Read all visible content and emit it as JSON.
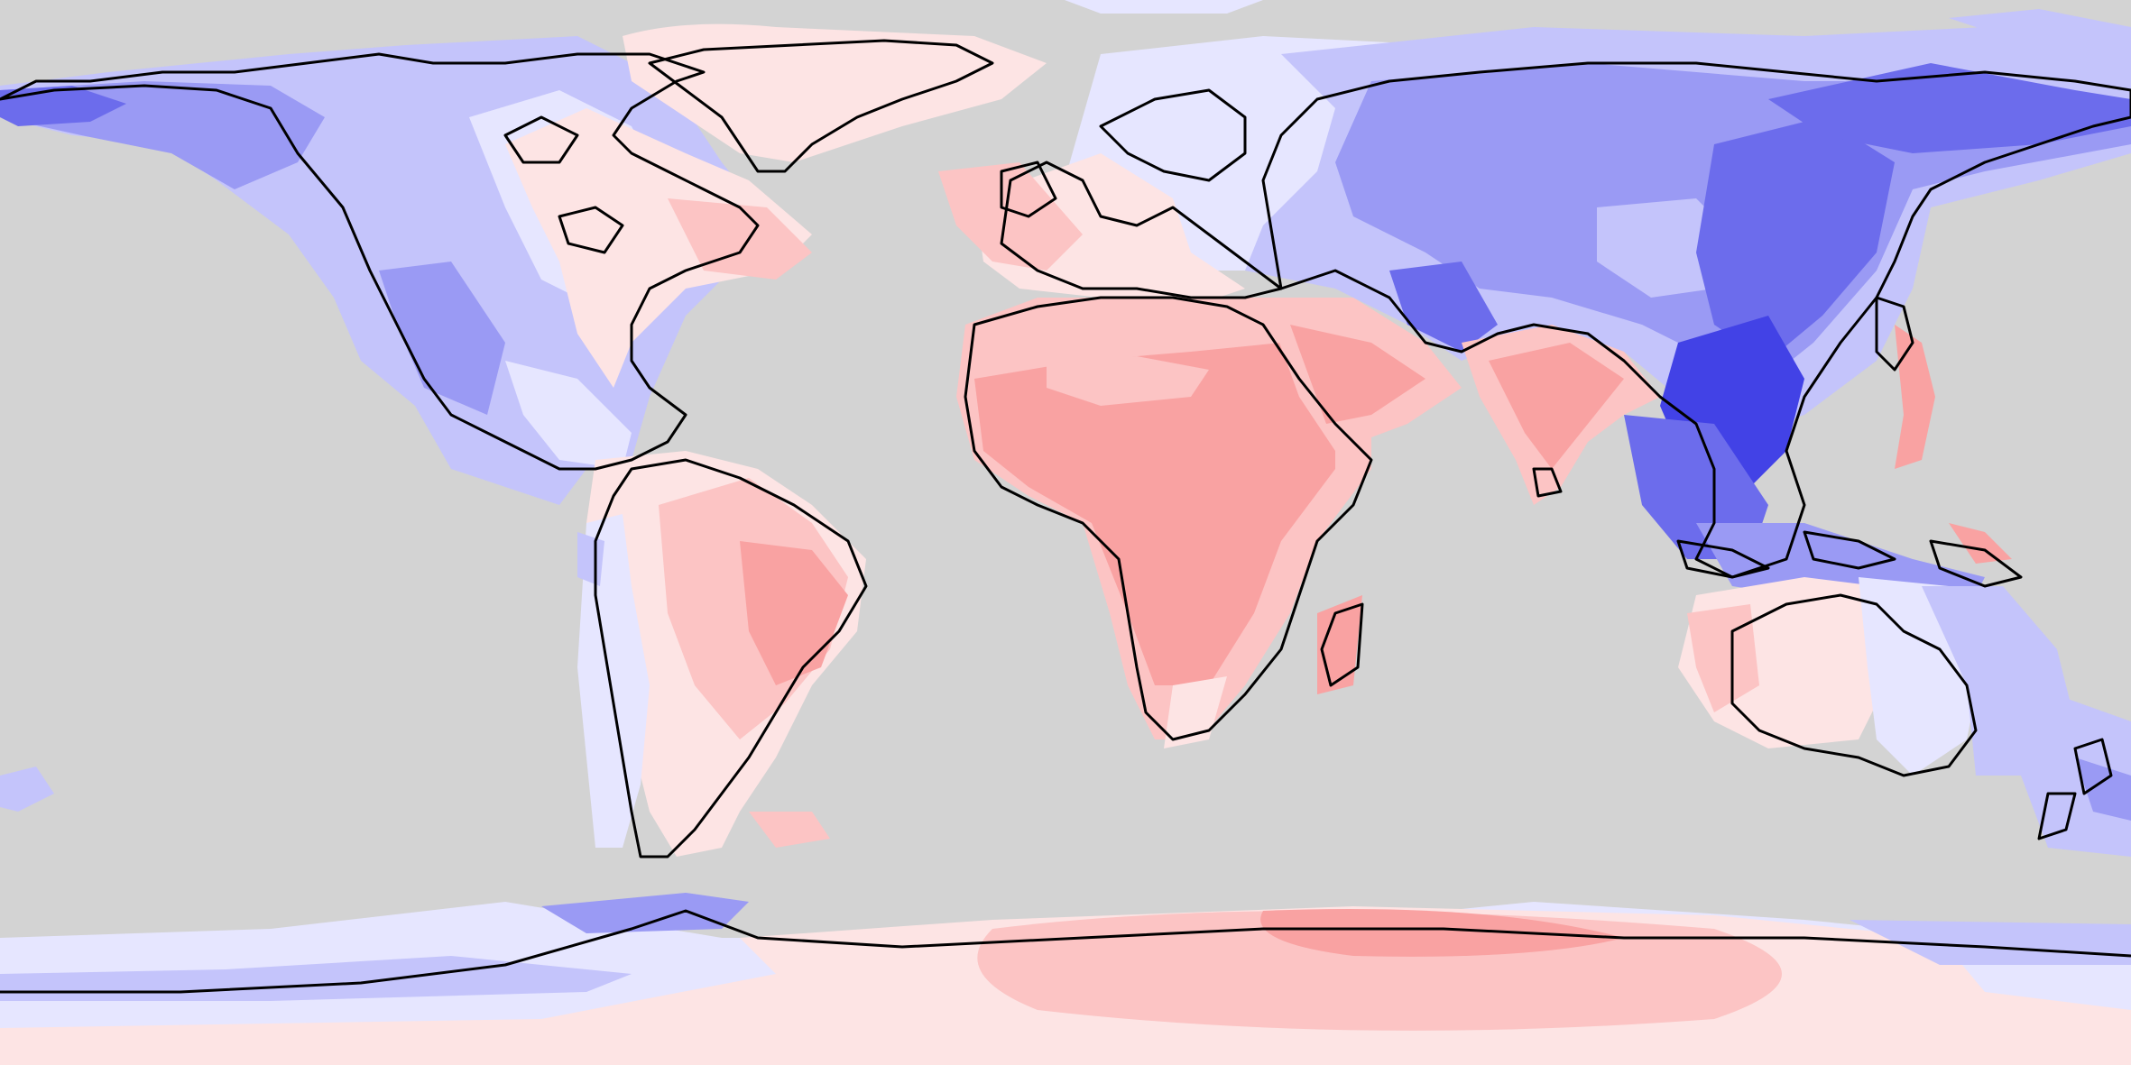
{
  "map": {
    "projection": "equirectangular",
    "colors": {
      "ocean": "#d3d3d3",
      "coastline": "#000000",
      "blue_1": "#e6e6ff",
      "blue_2": "#c4c4fb",
      "blue_3": "#9a9af4",
      "blue_4": "#6c6cec",
      "blue_5": "#4242e6",
      "red_1": "#fde4e4",
      "red_2": "#fcc4c4",
      "red_3": "#f9a2a2",
      "red_4": "#f28484",
      "red_5": "#e86b6b"
    },
    "legend": null
  }
}
